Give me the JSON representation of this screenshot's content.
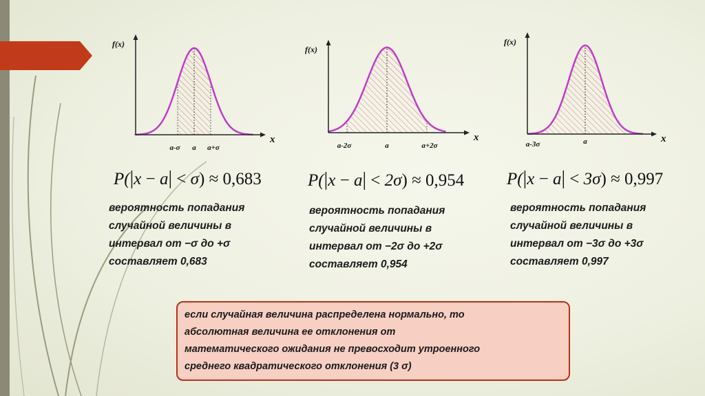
{
  "graphs": [
    {
      "y_axis_label": "f(x)",
      "x_axis_label": "x",
      "interval_k": 1,
      "ticks": {
        "left": "a-σ",
        "center": "a",
        "right": "a+σ"
      },
      "formula": {
        "p": "P(",
        "x": "x",
        "minus": " − ",
        "a": "a",
        "lt": " < ",
        "bound": "σ",
        "close": ") ≈ ",
        "value": "0,683"
      },
      "description": [
        "вероятность  попадания",
        "случайной   величины   в",
        "интервал  от  −σ  до  +σ",
        "составляет 0,683"
      ]
    },
    {
      "y_axis_label": "f(x)",
      "x_axis_label": "x",
      "interval_k": 2,
      "ticks": {
        "left": "a-2σ",
        "center": "a",
        "right": "a+2σ"
      },
      "formula": {
        "p": "P(",
        "x": "x",
        "minus": " − ",
        "a": "a",
        "lt": " < ",
        "bound": "2σ",
        "close": ") ≈ ",
        "value": "0,954"
      },
      "description": [
        "вероятность  попадания",
        "случайной   величины   в",
        "интервал от −2σ до +2σ",
        "составляет 0,954"
      ]
    },
    {
      "y_axis_label": "f(x)",
      "x_axis_label": "x",
      "interval_k": 3,
      "ticks": {
        "left": "a-3σ",
        "center": "a",
        "right": ""
      },
      "formula": {
        "p": "P(",
        "x": "x",
        "minus": " − ",
        "a": "a",
        "lt": " < ",
        "bound": "3σ",
        "close": ") ≈ ",
        "value": "0,997"
      },
      "description": [
        "вероятность  попадания",
        "случайной   величины   в",
        "интервал от −3σ до +3σ",
        "составляет 0,997"
      ]
    }
  ],
  "note": {
    "lines": [
      "если случайная величина распределена нормально, то",
      "абсолютная     величина     ее     отклонения     от",
      "математического ожидания не превосходит утроенного",
      "среднего квадратического отклонения (3 σ)"
    ]
  },
  "colors": {
    "curve": "#c23cc9",
    "hatch": "#d87878",
    "accent": "#c13b1b",
    "note_bg": "#f7cfc3"
  }
}
